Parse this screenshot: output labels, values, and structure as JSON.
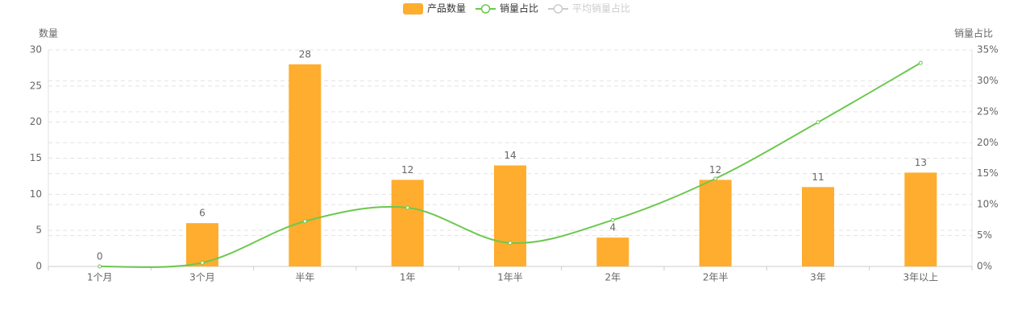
{
  "chart_data": {
    "type": "bar",
    "categories": [
      "1个月",
      "3个月",
      "半年",
      "1年",
      "1年半",
      "2年",
      "2年半",
      "3年",
      "3年以上"
    ],
    "series": [
      {
        "name": "产品数量",
        "color": "#ffad2e",
        "values": [
          0,
          6,
          28,
          12,
          14,
          4,
          12,
          11,
          13
        ]
      },
      {
        "name": "销量占比",
        "color": "#6cc84f",
        "axis": "y2",
        "type": "line",
        "smooth": true,
        "values": [
          0,
          0.6,
          7.3,
          9.5,
          3.8,
          7.5,
          14.2,
          23.3,
          32.9
        ]
      },
      {
        "name": "平均销量占比",
        "color": "#cccccc",
        "hidden": true
      }
    ],
    "ylabel": "数量",
    "y2label": "销量占比",
    "ylim": [
      0,
      30
    ],
    "yticks": [
      0,
      5,
      10,
      15,
      20,
      25,
      30
    ],
    "y2lim": [
      0,
      35
    ],
    "y2ticks": [
      {
        "value": 0,
        "label": "0%"
      },
      {
        "value": 5,
        "label": "5%"
      },
      {
        "value": 10,
        "label": "10%"
      },
      {
        "value": 15,
        "label": "15%"
      },
      {
        "value": 20,
        "label": "20%"
      },
      {
        "value": 25,
        "label": "25%"
      },
      {
        "value": 30,
        "label": "30%"
      },
      {
        "value": 35,
        "label": "35%"
      }
    ],
    "grid": true,
    "legend": "top"
  }
}
